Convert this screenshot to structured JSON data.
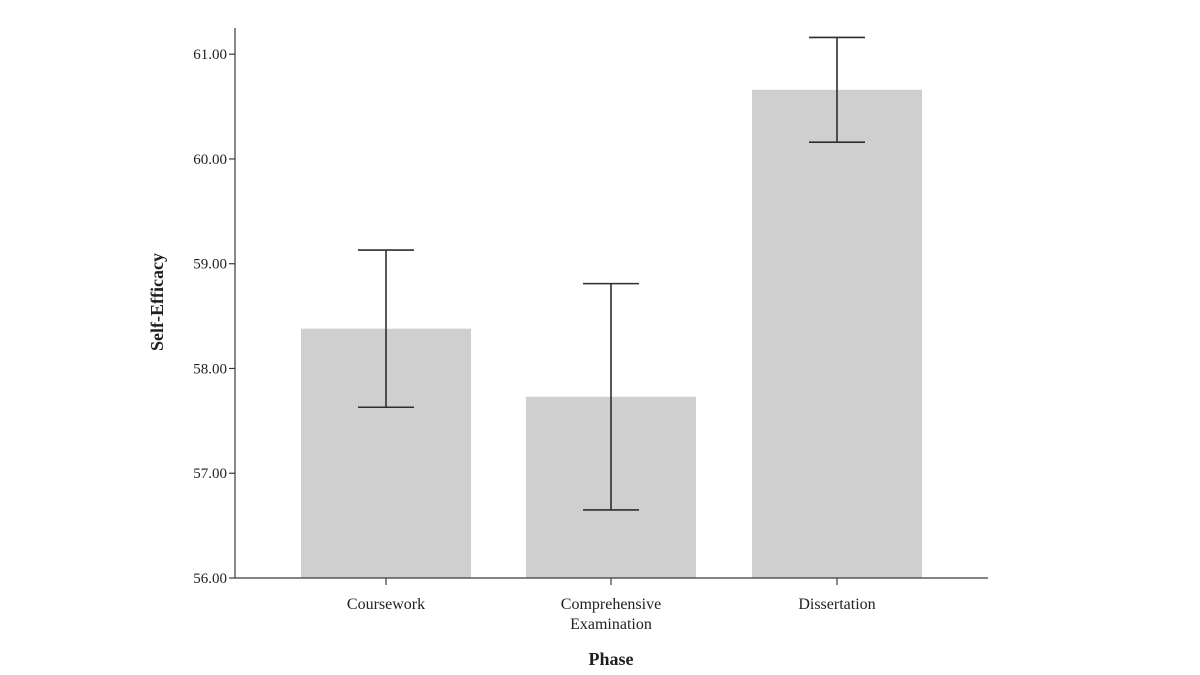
{
  "chart_data": {
    "type": "bar",
    "xlabel": "Phase",
    "ylabel": "Self-Efficacy",
    "ylim": [
      56,
      61.25
    ],
    "yticks": [
      "56.00",
      "57.00",
      "58.00",
      "59.00",
      "60.00",
      "61.00"
    ],
    "categories": [
      [
        "Coursework"
      ],
      [
        "Comprehensive",
        "Examination"
      ],
      [
        "Dissertation"
      ]
    ],
    "values": [
      58.38,
      57.73,
      60.66
    ],
    "error_bars": [
      {
        "low": 57.63,
        "high": 59.13
      },
      {
        "low": 56.65,
        "high": 58.81
      },
      {
        "low": 60.16,
        "high": 61.16
      }
    ],
    "colors": {
      "bar": "#cfcfcf",
      "axis": "#3a3a3a",
      "text": "#1f1f1f"
    },
    "grid": false
  }
}
